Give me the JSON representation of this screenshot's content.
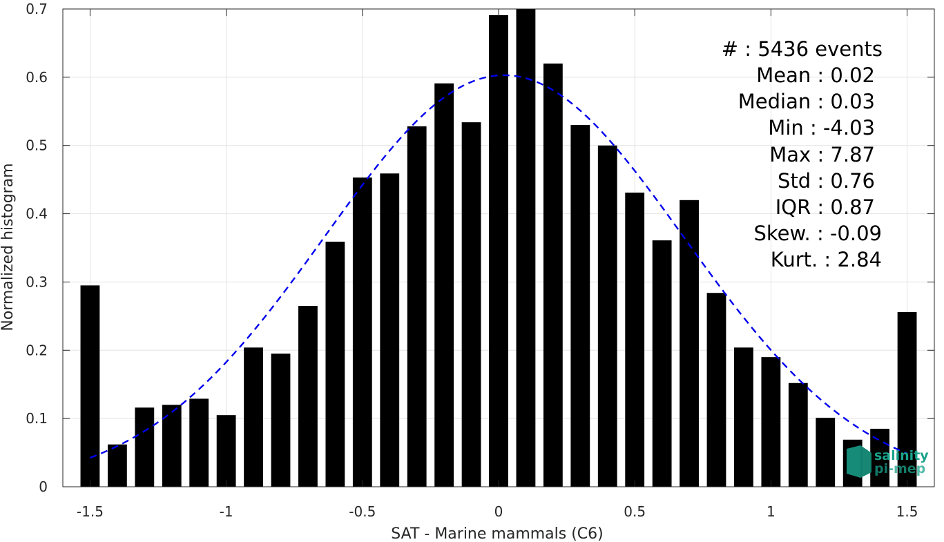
{
  "chart_data": {
    "type": "bar",
    "title": "",
    "xlabel": "SAT - Marine mammals (C6)",
    "ylabel": "Normalized histogram",
    "xlim": [
      -1.6,
      1.6
    ],
    "ylim": [
      0,
      0.7
    ],
    "xticks": [
      -1.5,
      -1,
      -0.5,
      0,
      0.5,
      1,
      1.5
    ],
    "xtick_labels": [
      "-1.5",
      "-1",
      "-0.5",
      "0",
      "0.5",
      "1",
      "1.5"
    ],
    "yticks": [
      0,
      0.1,
      0.2,
      0.3,
      0.4,
      0.5,
      0.6,
      0.7
    ],
    "ytick_labels": [
      "0",
      "0.1",
      "0.2",
      "0.3",
      "0.4",
      "0.5",
      "0.6",
      "0.7"
    ],
    "grid": true,
    "bar_color": "#000000",
    "x": [
      -1.5,
      -1.4,
      -1.3,
      -1.2,
      -1.1,
      -1.0,
      -0.9,
      -0.8,
      -0.7,
      -0.6,
      -0.5,
      -0.4,
      -0.3,
      -0.2,
      -0.1,
      0.0,
      0.1,
      0.2,
      0.3,
      0.4,
      0.5,
      0.6,
      0.7,
      0.8,
      0.9,
      1.0,
      1.1,
      1.2,
      1.3,
      1.4,
      1.5
    ],
    "values": [
      0.295,
      0.062,
      0.116,
      0.12,
      0.129,
      0.105,
      0.204,
      0.195,
      0.265,
      0.359,
      0.453,
      0.459,
      0.528,
      0.591,
      0.534,
      0.691,
      0.7,
      0.62,
      0.53,
      0.5,
      0.431,
      0.361,
      0.42,
      0.284,
      0.204,
      0.19,
      0.152,
      0.101,
      0.069,
      0.085,
      0.256
    ],
    "fit_curve": {
      "type": "gaussian",
      "color": "#0000ee",
      "style": "dashed",
      "mean": 0.02,
      "std": 0.66,
      "peak": 0.603,
      "x_range": [
        -1.5,
        1.5
      ]
    }
  },
  "stats": [
    "#  : 5436 events",
    "Mean : 0.02",
    "Median : 0.03",
    "Min : -4.03",
    "Max : 7.87",
    "Std : 0.76",
    "IQR : 0.87",
    "Skew. : -0.09",
    "Kurt. : 2.84"
  ],
  "logo": {
    "line1": "salinity",
    "line2": "pi-mep",
    "color": "#1aa38c"
  }
}
